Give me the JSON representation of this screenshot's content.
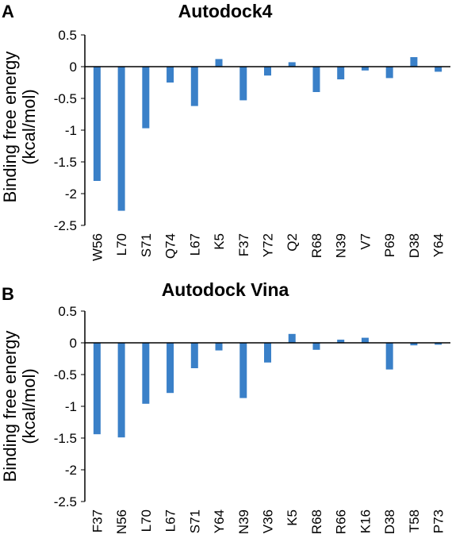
{
  "panels": [
    {
      "letter": "A",
      "ylabel_lines": [
        "Binding free energy",
        "(kcal/mol)"
      ]
    },
    {
      "letter": "B",
      "ylabel_lines": [
        "Binding free energy",
        "(kcal/mol)"
      ]
    }
  ],
  "bar_color": "#3a80c8",
  "chart_data": [
    {
      "type": "bar",
      "title": "Autodock4",
      "ylabel": "Binding free energy (kcal/mol)",
      "xlabel": "",
      "ylim": [
        -2.5,
        0.5
      ],
      "yticks": [
        "0.5",
        "0",
        "-0.5",
        "-1",
        "-1.5",
        "-2",
        "-2.5"
      ],
      "ytick_values": [
        0.5,
        0,
        -0.5,
        -1,
        -1.5,
        -2,
        -2.5
      ],
      "grid": false,
      "categories": [
        "W56",
        "L70",
        "S71",
        "Q74",
        "L67",
        "K5",
        "F37",
        "Y72",
        "Q2",
        "R68",
        "N39",
        "V7",
        "P69",
        "D38",
        "Y64"
      ],
      "values": [
        -1.8,
        -2.27,
        -0.97,
        -0.25,
        -0.62,
        0.12,
        -0.53,
        -0.14,
        0.07,
        -0.4,
        -0.2,
        -0.06,
        -0.18,
        0.15,
        -0.08
      ]
    },
    {
      "type": "bar",
      "title": "Autodock Vina",
      "ylabel": "Binding free energy (kcal/mol)",
      "xlabel": "",
      "ylim": [
        -2.5,
        0.5
      ],
      "yticks": [
        "0.5",
        "0",
        "-0.5",
        "-1",
        "-1.5",
        "-2",
        "-2.5"
      ],
      "ytick_values": [
        0.5,
        0,
        -0.5,
        -1,
        -1.5,
        -2,
        -2.5
      ],
      "grid": false,
      "categories": [
        "F37",
        "N56",
        "L70",
        "L67",
        "S71",
        "Y64",
        "N39",
        "V36",
        "K5",
        "R68",
        "R66",
        "K16",
        "D38",
        "T58",
        "P73"
      ],
      "values": [
        -1.44,
        -1.49,
        -0.96,
        -0.79,
        -0.4,
        -0.12,
        -0.87,
        -0.31,
        0.14,
        -0.11,
        0.05,
        0.08,
        -0.42,
        -0.04,
        -0.03
      ]
    }
  ]
}
